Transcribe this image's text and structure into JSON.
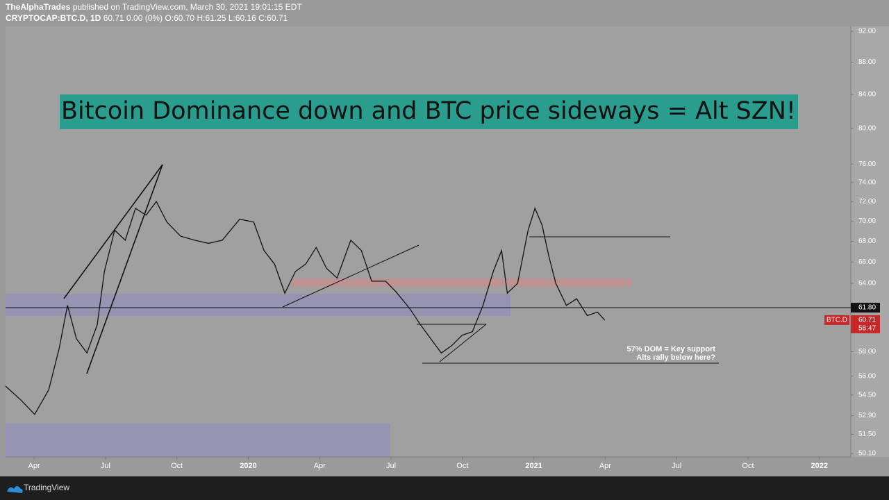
{
  "header": {
    "publisher": "TheAlphaTrades",
    "published": "published on TradingView.com, March 30, 2021 19:01:15 EDT",
    "symbol": "CRYPTOCAP:BTC.D, 1D",
    "ohlc": "60.71 0.00 (0%) O:60.70 H:61.25 L:60.16 C:60.71"
  },
  "footer": {
    "brand": "TradingView"
  },
  "chart_data": {
    "type": "line",
    "title": "Bitcoin Dominance down and BTC price sideways = Alt SZN!",
    "annotations": [
      "57% DOM = Key support",
      "Alts rally below here?"
    ],
    "log_scale": true,
    "x": [
      2019.15,
      2019.204,
      2019.252,
      2019.301,
      2019.338,
      2019.367,
      2019.398,
      2019.435,
      2019.471,
      2019.496,
      2019.532,
      2019.569,
      2019.605,
      2019.642,
      2019.678,
      2019.715,
      2019.763,
      2019.812,
      2019.861,
      2019.909,
      2019.97,
      2020.019,
      2020.055,
      2020.092,
      2020.128,
      2020.165,
      2020.201,
      2020.238,
      2020.274,
      2020.311,
      2020.359,
      2020.396,
      2020.432,
      2020.481,
      2020.518,
      2020.566,
      2020.603,
      2020.639,
      2020.676,
      2020.712,
      2020.749,
      2020.785,
      2020.822,
      2020.858,
      2020.887,
      2020.907,
      2020.943,
      2020.98,
      2021.004,
      2021.029,
      2021.053,
      2021.077,
      2021.114,
      2021.15,
      2021.187,
      2021.223,
      2021.248
    ],
    "series": [
      {
        "name": "BTC.D",
        "color": "#111111",
        "values": [
          55.2,
          54.1,
          53.0,
          54.9,
          58.3,
          62.0,
          59.1,
          57.9,
          60.3,
          65.1,
          69.1,
          68.1,
          71.3,
          70.6,
          72.0,
          69.9,
          68.5,
          68.1,
          67.8,
          68.1,
          70.2,
          69.9,
          67.1,
          65.8,
          63.1,
          65.1,
          65.8,
          67.4,
          65.4,
          64.5,
          68.1,
          67.1,
          64.2,
          64.2,
          63.2,
          61.7,
          60.3,
          59.1,
          57.9,
          58.5,
          59.4,
          59.7,
          62.0,
          65.1,
          67.1,
          63.1,
          64.0,
          69.1,
          71.3,
          69.6,
          66.5,
          64.0,
          62.0,
          62.6,
          61.1,
          61.4,
          60.71
        ]
      }
    ],
    "xlim": [
      2019.15,
      2022.11
    ],
    "xticks": [
      {
        "value": 2019.25,
        "label": "Apr"
      },
      {
        "value": 2019.5,
        "label": "Jul"
      },
      {
        "value": 2019.75,
        "label": "Oct"
      },
      2020,
      {
        "value": 2020.25,
        "label": "Apr"
      },
      {
        "value": 2020.5,
        "label": "Jul"
      },
      {
        "value": 2020.75,
        "label": "Oct"
      },
      2021,
      {
        "value": 2021.25,
        "label": "Apr"
      },
      {
        "value": 2021.5,
        "label": "Jul"
      },
      {
        "value": 2021.75,
        "label": "Oct"
      },
      2022
    ],
    "ylim": [
      49.85,
      92.65
    ],
    "yticks": [
      {
        "value": 92,
        "label": "92.00"
      },
      {
        "value": 88,
        "label": "88.00"
      },
      {
        "value": 84,
        "label": "84.00"
      },
      {
        "value": 80,
        "label": "80.00"
      },
      {
        "value": 76,
        "label": "76.00"
      },
      {
        "value": 74,
        "label": "74.00"
      },
      {
        "value": 72,
        "label": "72.00"
      },
      {
        "value": 70,
        "label": "70.00"
      },
      {
        "value": 68,
        "label": "68.00"
      },
      {
        "value": 66,
        "label": "66.00"
      },
      {
        "value": 64,
        "label": "64.00"
      },
      {
        "value": 58,
        "label": "58.00"
      },
      {
        "value": 56,
        "label": "56.00"
      },
      {
        "value": 54.5,
        "label": "54.50"
      },
      {
        "value": 52.9,
        "label": "52.90"
      },
      {
        "value": 51.5,
        "label": "51.50"
      },
      {
        "value": 50.1,
        "label": "50.10"
      }
    ],
    "hline": {
      "value": 61.8,
      "label": "61.80"
    },
    "last_price": 60.71,
    "countdown": "58:47"
  }
}
